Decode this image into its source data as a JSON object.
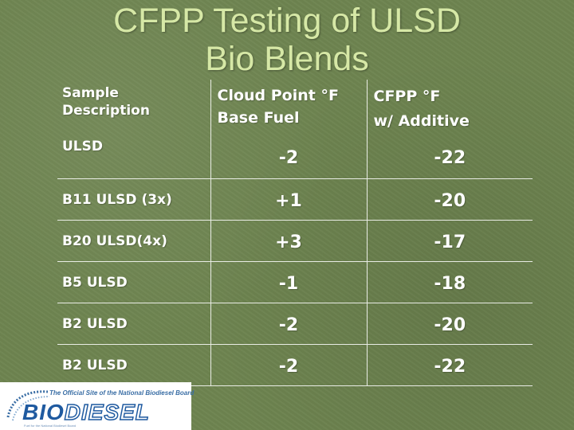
{
  "title": {
    "line1": "CFPP Testing of ULSD",
    "line2": "Bio Blends"
  },
  "table": {
    "headers": {
      "description": "Sample Description",
      "cloud_point_line1": "Cloud Point °F",
      "cloud_point_line2": "Base Fuel",
      "cfpp_line1": "CFPP °F",
      "cfpp_line2": "w/ Additive"
    },
    "rows": [
      {
        "description": "ULSD",
        "cloud_point": "-2",
        "cfpp": "-22"
      },
      {
        "description": "B11 ULSD (3x)",
        "cloud_point": "+1",
        "cfpp": "-20"
      },
      {
        "description": "B20 ULSD(4x)",
        "cloud_point": "+3",
        "cfpp": "-17"
      },
      {
        "description": "B5 ULSD",
        "cloud_point": "-1",
        "cfpp": "-18"
      },
      {
        "description": "B2 ULSD",
        "cloud_point": "-2",
        "cfpp": "-20"
      },
      {
        "description": "B2 ULSD",
        "cloud_point": "-2",
        "cfpp": "-22"
      }
    ]
  },
  "logo": {
    "tagline": "The Official Site of the National Biodiesel Board",
    "word_bio": "BIO",
    "word_diesel": "DIESEL",
    "small_text": "Fuel for the National Biodiesel Board",
    "brand_color": "#1f5aa0"
  },
  "colors": {
    "background": "#6e8450",
    "title": "#d6e8a6",
    "text": "#ffffff"
  }
}
